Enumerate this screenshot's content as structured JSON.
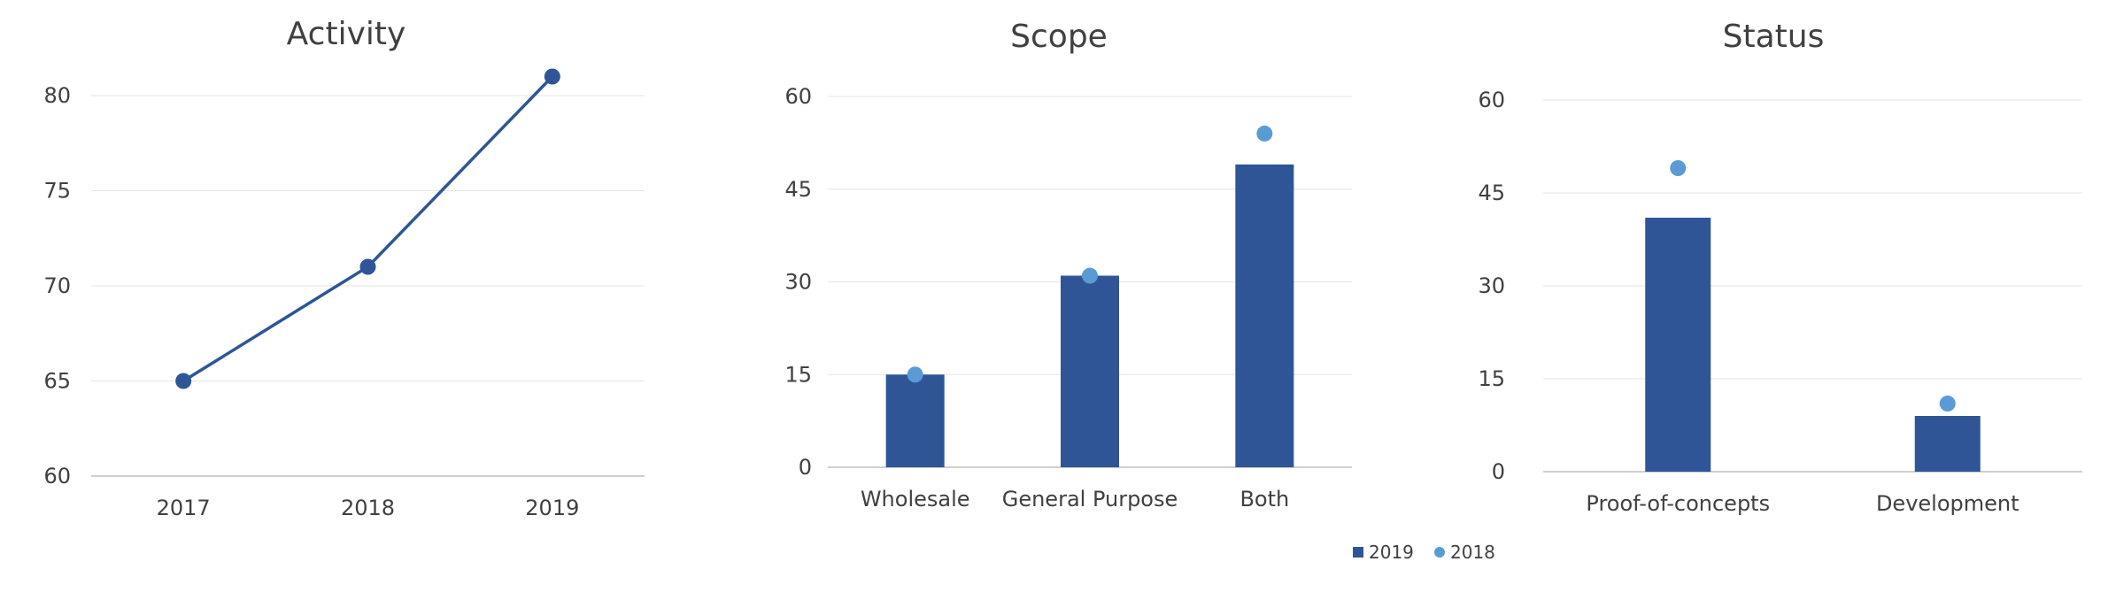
{
  "chart_data": [
    {
      "type": "line",
      "title": "Activity",
      "xlabel": "",
      "ylabel": "",
      "categories": [
        "2017",
        "2018",
        "2019"
      ],
      "series": [
        {
          "values": [
            65,
            71,
            81
          ],
          "color": "#2f5597"
        }
      ],
      "ylim": [
        60,
        80
      ],
      "yticks": [
        60,
        65,
        70,
        75,
        80
      ],
      "grid": true
    },
    {
      "type": "bar",
      "title": "Scope",
      "xlabel": "",
      "ylabel": "",
      "categories": [
        "Wholesale",
        "General Purpose",
        "Both"
      ],
      "series": [
        {
          "name": "2019",
          "kind": "bar",
          "values": [
            15,
            31,
            49
          ],
          "color": "#2f5597"
        },
        {
          "name": "2018",
          "kind": "marker",
          "values": [
            15,
            31,
            54
          ],
          "color": "#5b9bd5"
        }
      ],
      "ylim": [
        0,
        60
      ],
      "yticks": [
        0,
        15,
        30,
        45,
        60
      ],
      "grid": true
    },
    {
      "type": "bar",
      "title": "Status",
      "xlabel": "",
      "ylabel": "",
      "categories": [
        "Proof-of-concepts",
        "Development"
      ],
      "series": [
        {
          "name": "2019",
          "kind": "bar",
          "values": [
            41,
            9
          ],
          "color": "#2f5597"
        },
        {
          "name": "2018",
          "kind": "marker",
          "values": [
            49,
            11
          ],
          "color": "#5b9bd5"
        }
      ],
      "ylim": [
        0,
        60
      ],
      "yticks": [
        0,
        15,
        30,
        45,
        60
      ],
      "grid": true
    }
  ],
  "legend": {
    "placement": "bottom-right",
    "items": [
      {
        "label": "2019",
        "shape": "square",
        "color": "#2f5597"
      },
      {
        "label": "2018",
        "shape": "circle",
        "color": "#5b9bd5"
      }
    ]
  }
}
